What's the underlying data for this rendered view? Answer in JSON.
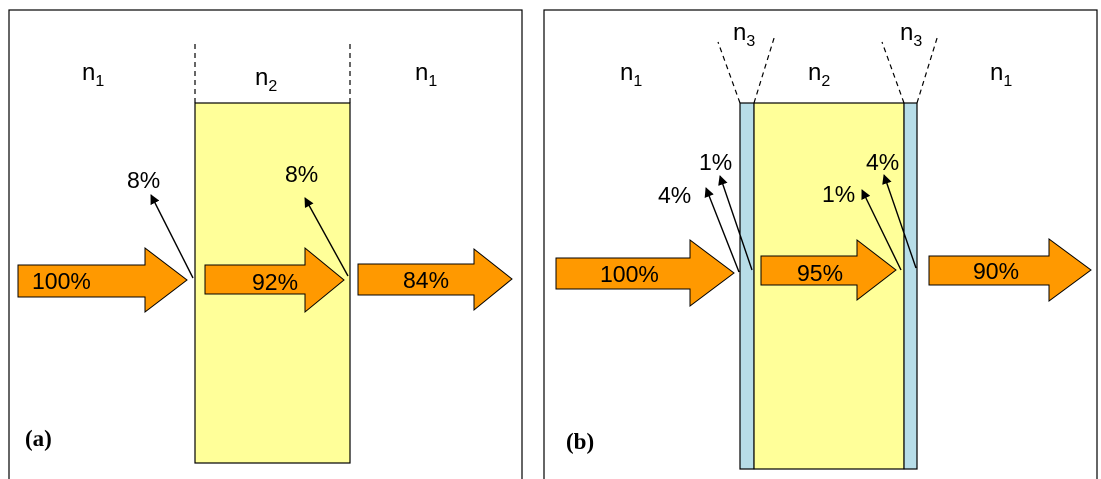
{
  "panel_a": {
    "tag": "(a)",
    "media": {
      "left": {
        "base": "n",
        "sub": "1"
      },
      "middle": {
        "base": "n",
        "sub": "2"
      },
      "right": {
        "base": "n",
        "sub": "1"
      }
    },
    "transmitted": [
      "100%",
      "92%",
      "84%"
    ],
    "reflected": [
      "8%",
      "8%"
    ]
  },
  "panel_b": {
    "tag": "(b)",
    "media": {
      "left": {
        "base": "n",
        "sub": "1"
      },
      "coating_left": {
        "base": "n",
        "sub": "3"
      },
      "middle": {
        "base": "n",
        "sub": "2"
      },
      "coating_right": {
        "base": "n",
        "sub": "3"
      },
      "right": {
        "base": "n",
        "sub": "1"
      }
    },
    "transmitted": [
      "100%",
      "95%",
      "90%"
    ],
    "reflected_left": [
      "4%",
      "1%"
    ],
    "reflected_right": [
      "1%",
      "4%"
    ]
  },
  "colors": {
    "arrow_fill": "#ff9900",
    "slab_fill": "#ffff99",
    "coating_fill": "#b7dde8",
    "outline": "#000000"
  }
}
